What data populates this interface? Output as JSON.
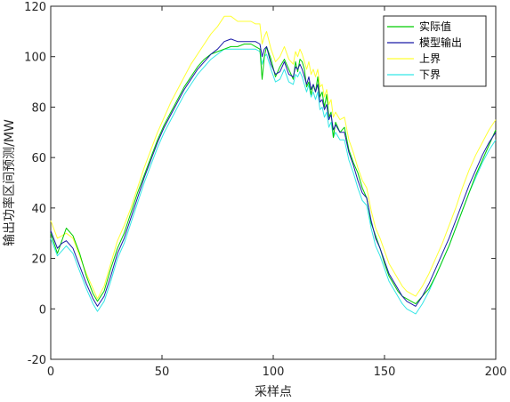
{
  "chart_data": {
    "type": "line",
    "xlabel": "采样点",
    "ylabel": "输出功率区间预测/MW",
    "xlim": [
      0,
      200
    ],
    "ylim": [
      -20,
      120
    ],
    "xticks": [
      0,
      50,
      100,
      150,
      200
    ],
    "yticks": [
      -20,
      0,
      20,
      40,
      60,
      80,
      100,
      120
    ],
    "legend_position": "top-right",
    "grid": false,
    "series": [
      {
        "name": "实际值",
        "color": "#00cc00",
        "x": [
          0,
          3,
          5,
          7,
          10,
          13,
          16,
          19,
          21,
          24,
          27,
          30,
          33,
          36,
          39,
          42,
          45,
          48,
          51,
          54,
          57,
          60,
          63,
          66,
          69,
          72,
          75,
          78,
          81,
          84,
          87,
          90,
          92,
          94,
          95,
          96,
          97,
          99,
          101,
          103,
          105,
          107,
          109,
          110,
          111,
          112,
          113,
          114,
          115,
          116,
          117,
          118,
          119,
          120,
          121,
          122,
          123,
          124,
          125,
          126,
          127,
          128,
          130,
          132,
          134,
          136,
          138,
          140,
          142,
          144,
          146,
          148,
          150,
          152,
          154,
          156,
          158,
          160,
          162,
          164,
          167,
          170,
          173,
          176,
          179,
          182,
          185,
          188,
          191,
          194,
          197,
          200
        ],
        "y": [
          30,
          22,
          27,
          32,
          29,
          22,
          13,
          6,
          3,
          7,
          16,
          24,
          30,
          38,
          46,
          53,
          60,
          67,
          73,
          78,
          83,
          88,
          92,
          96,
          99,
          101,
          102,
          103,
          104,
          104,
          105,
          105,
          104,
          103,
          91,
          100,
          104,
          99,
          92,
          96,
          99,
          95,
          91,
          98,
          94,
          99,
          98,
          95,
          88,
          90,
          85,
          89,
          86,
          92,
          84,
          86,
          80,
          85,
          76,
          78,
          68,
          74,
          70,
          72,
          63,
          58,
          54,
          48,
          44,
          34,
          29,
          24,
          18,
          13,
          10,
          7,
          5,
          4,
          3,
          2,
          5,
          8,
          13,
          19,
          25,
          32,
          39,
          46,
          53,
          59,
          65,
          71
        ]
      },
      {
        "name": "模型输出",
        "color": "#1a1aa8",
        "x": [
          0,
          3,
          5,
          7,
          10,
          13,
          16,
          19,
          21,
          24,
          27,
          30,
          33,
          36,
          39,
          42,
          45,
          48,
          51,
          54,
          57,
          60,
          63,
          66,
          69,
          72,
          75,
          78,
          81,
          84,
          87,
          90,
          92,
          94,
          95,
          96,
          97,
          99,
          101,
          103,
          105,
          107,
          109,
          110,
          111,
          112,
          113,
          114,
          115,
          116,
          117,
          118,
          119,
          120,
          121,
          122,
          123,
          124,
          125,
          126,
          127,
          128,
          130,
          132,
          134,
          136,
          138,
          140,
          142,
          144,
          146,
          148,
          150,
          152,
          154,
          156,
          158,
          160,
          162,
          164,
          167,
          170,
          173,
          176,
          179,
          182,
          185,
          188,
          191,
          194,
          197,
          200
        ],
        "y": [
          31,
          24,
          26,
          27,
          24,
          17,
          10,
          4,
          1,
          5,
          13,
          22,
          28,
          36,
          44,
          52,
          59,
          66,
          72,
          77,
          82,
          87,
          91,
          95,
          98,
          101,
          103,
          106,
          107,
          106,
          106,
          106,
          106,
          105,
          100,
          103,
          104,
          97,
          93,
          94,
          98,
          93,
          92,
          96,
          95,
          97,
          95,
          92,
          89,
          92,
          87,
          89,
          86,
          89,
          82,
          83,
          79,
          81,
          75,
          77,
          71,
          73,
          70,
          70,
          62,
          57,
          51,
          46,
          44,
          35,
          28,
          24,
          19,
          14,
          11,
          8,
          5,
          3,
          2,
          1,
          5,
          10,
          16,
          22,
          28,
          35,
          42,
          49,
          55,
          61,
          66,
          70
        ]
      },
      {
        "name": "上界",
        "color": "#ffff33",
        "x": [
          0,
          3,
          5,
          7,
          10,
          13,
          16,
          19,
          21,
          24,
          27,
          30,
          33,
          36,
          39,
          42,
          45,
          48,
          51,
          54,
          57,
          60,
          63,
          66,
          69,
          72,
          75,
          78,
          81,
          84,
          87,
          90,
          92,
          94,
          95,
          96,
          97,
          99,
          101,
          103,
          105,
          107,
          109,
          110,
          111,
          112,
          113,
          114,
          115,
          116,
          117,
          118,
          119,
          120,
          121,
          122,
          123,
          124,
          125,
          126,
          127,
          128,
          130,
          132,
          134,
          136,
          138,
          140,
          142,
          144,
          146,
          148,
          150,
          152,
          154,
          156,
          158,
          160,
          162,
          164,
          167,
          170,
          173,
          176,
          179,
          182,
          185,
          188,
          191,
          194,
          197,
          200
        ],
        "y": [
          35,
          28,
          29,
          30,
          28,
          21,
          14,
          8,
          4,
          9,
          18,
          27,
          33,
          40,
          48,
          56,
          63,
          70,
          76,
          82,
          87,
          92,
          97,
          101,
          105,
          109,
          112,
          116,
          116,
          114,
          114,
          114,
          113,
          113,
          105,
          108,
          110,
          103,
          98,
          100,
          104,
          99,
          97,
          102,
          100,
          103,
          101,
          98,
          95,
          98,
          93,
          95,
          92,
          95,
          88,
          89,
          84,
          87,
          81,
          83,
          76,
          78,
          75,
          76,
          67,
          62,
          56,
          51,
          48,
          39,
          32,
          28,
          23,
          18,
          15,
          12,
          9,
          7,
          6,
          5,
          9,
          14,
          20,
          26,
          33,
          40,
          48,
          55,
          61,
          66,
          71,
          75
        ]
      },
      {
        "name": "下界",
        "color": "#33e6e6",
        "x": [
          0,
          3,
          5,
          7,
          10,
          13,
          16,
          19,
          21,
          24,
          27,
          30,
          33,
          36,
          39,
          42,
          45,
          48,
          51,
          54,
          57,
          60,
          63,
          66,
          69,
          72,
          75,
          78,
          81,
          84,
          87,
          90,
          92,
          94,
          95,
          96,
          97,
          99,
          101,
          103,
          105,
          107,
          109,
          110,
          111,
          112,
          113,
          114,
          115,
          116,
          117,
          118,
          119,
          120,
          121,
          122,
          123,
          124,
          125,
          126,
          127,
          128,
          130,
          132,
          134,
          136,
          138,
          140,
          142,
          144,
          146,
          148,
          150,
          152,
          154,
          156,
          158,
          160,
          162,
          164,
          167,
          170,
          173,
          176,
          179,
          182,
          185,
          188,
          191,
          194,
          197,
          200
        ],
        "y": [
          28,
          21,
          23,
          25,
          22,
          15,
          8,
          2,
          -1,
          3,
          11,
          20,
          26,
          34,
          42,
          50,
          57,
          64,
          70,
          75,
          80,
          85,
          89,
          93,
          96,
          99,
          101,
          103,
          103,
          103,
          103,
          103,
          103,
          102,
          97,
          100,
          101,
          95,
          90,
          91,
          95,
          90,
          89,
          93,
          92,
          94,
          92,
          89,
          86,
          89,
          84,
          86,
          83,
          86,
          79,
          80,
          76,
          78,
          72,
          74,
          68,
          70,
          67,
          67,
          59,
          54,
          48,
          43,
          41,
          32,
          25,
          21,
          16,
          11,
          8,
          5,
          2,
          0,
          -1,
          -2,
          2,
          7,
          13,
          19,
          25,
          32,
          39,
          46,
          52,
          58,
          63,
          67
        ]
      }
    ]
  }
}
